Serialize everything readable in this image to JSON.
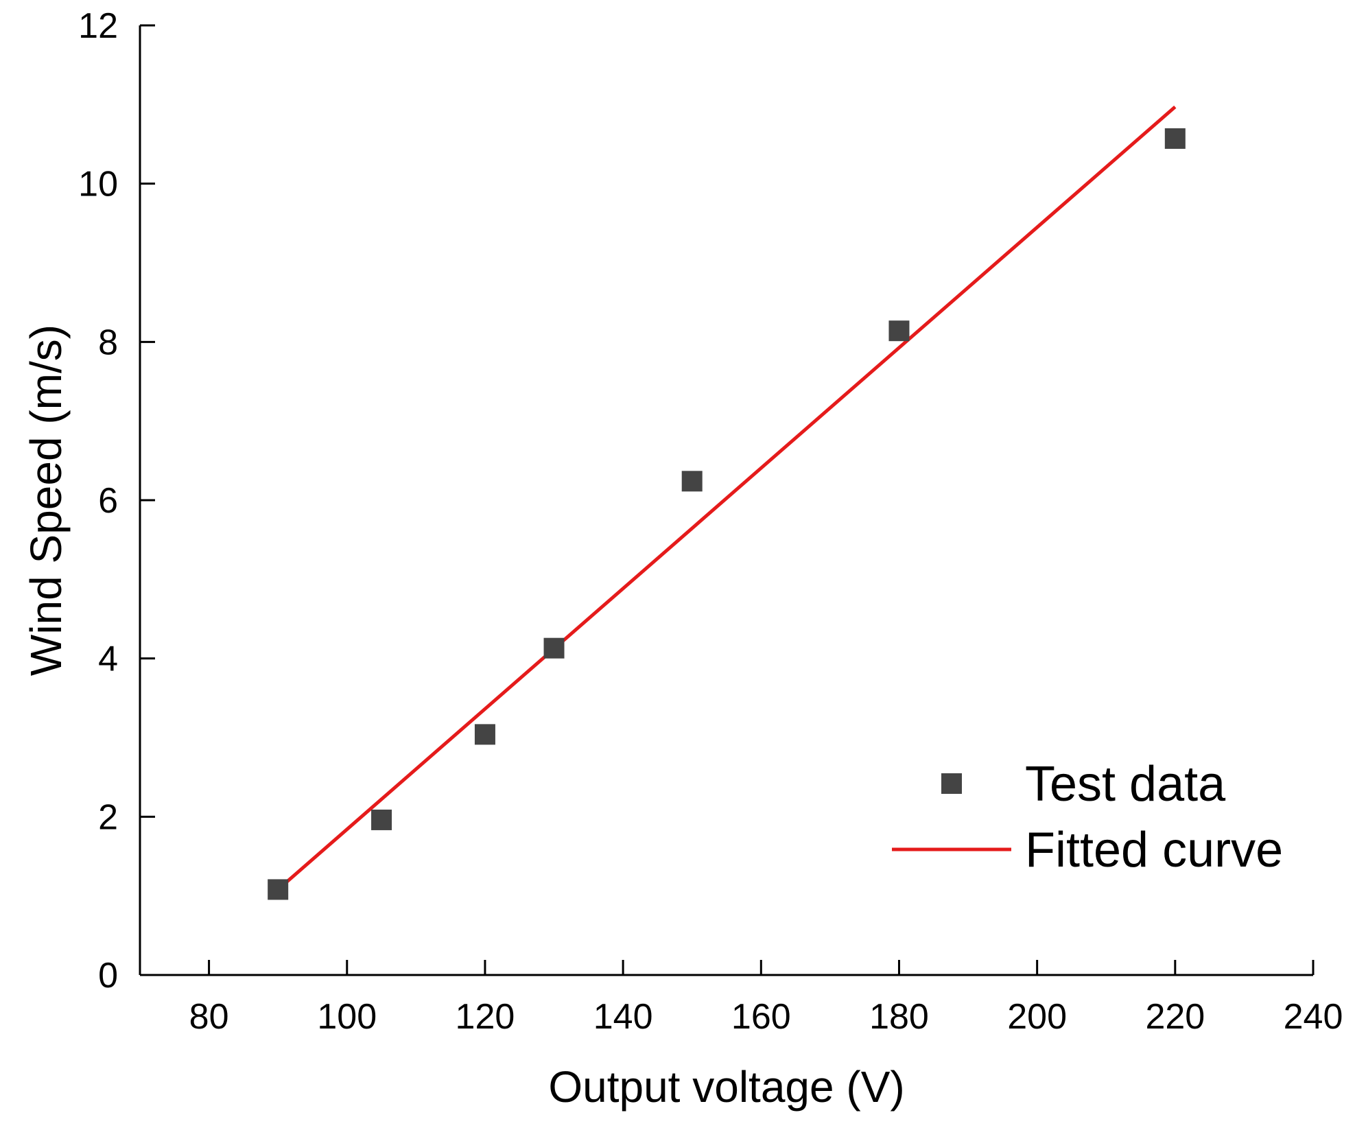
{
  "chart_data": {
    "type": "scatter",
    "title": "",
    "xlabel": "Output voltage (V)",
    "ylabel": "Wind Speed (m/s)",
    "xlim": [
      70,
      240
    ],
    "ylim": [
      0,
      12
    ],
    "x_ticks": [
      80,
      100,
      120,
      140,
      160,
      180,
      200,
      220,
      240
    ],
    "y_ticks": [
      0,
      2,
      4,
      6,
      8,
      10,
      12
    ],
    "grid": false,
    "legend_position": "lower-right",
    "series": [
      {
        "name": "Test data",
        "kind": "scatter",
        "marker": "square",
        "color": "#444444",
        "x": [
          90,
          105,
          120,
          130,
          150,
          180,
          220
        ],
        "y": [
          1.08,
          1.96,
          3.04,
          4.13,
          6.24,
          8.14,
          10.57
        ]
      },
      {
        "name": "Fitted curve",
        "kind": "line",
        "color": "#e51b1b",
        "x": [
          90,
          220
        ],
        "y": [
          1.08,
          10.97
        ]
      }
    ]
  }
}
